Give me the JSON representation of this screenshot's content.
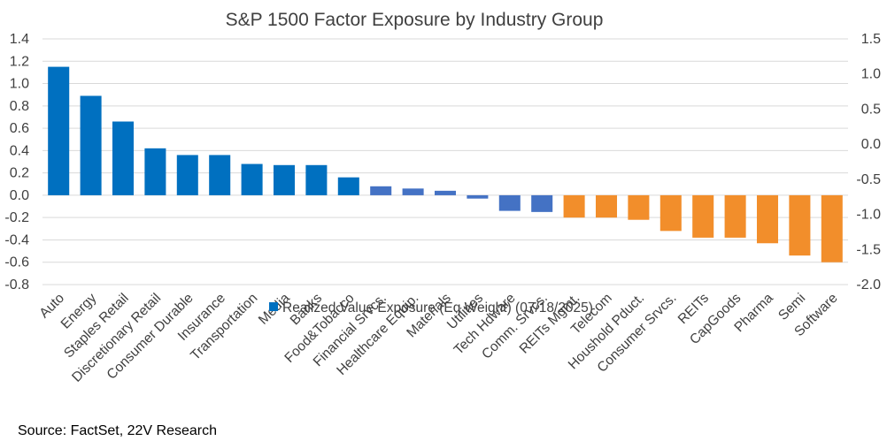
{
  "chart_data": {
    "type": "bar",
    "title": "S&P 1500 Factor Exposure by Industry Group",
    "categories": [
      "Auto",
      "Energy",
      "Staples Retail",
      "Discretionary Retail",
      "Consumer Durable",
      "Insurance",
      "Transportation",
      "Media",
      "Banks",
      "Food&Tobacco",
      "Financial Srvcs.",
      "Healthcare Equip.",
      "Materials",
      "Utilities",
      "Tech Hdware",
      "Comm. Srvcs.",
      "REITs Mgmt.",
      "Telecom",
      "Houshold Pduct.",
      "Consumer Srvcs.",
      "REITs",
      "CapGoods",
      "Pharma",
      "Semi",
      "Software"
    ],
    "series": [
      {
        "name": "Realized Value Exposure (Eq Weight) (07/18/2025)",
        "values": [
          1.15,
          0.89,
          0.66,
          0.42,
          0.36,
          0.36,
          0.28,
          0.27,
          0.27,
          0.16,
          0.08,
          0.06,
          0.04,
          -0.03,
          -0.14,
          -0.15,
          -0.2,
          -0.2,
          -0.22,
          -0.32,
          -0.38,
          -0.38,
          -0.43,
          -0.54,
          -0.6
        ]
      }
    ],
    "bar_colors": [
      "#0070C0",
      "#0070C0",
      "#0070C0",
      "#0070C0",
      "#0070C0",
      "#0070C0",
      "#0070C0",
      "#0070C0",
      "#0070C0",
      "#0070C0",
      "#4472C4",
      "#4472C4",
      "#4472C4",
      "#4472C4",
      "#4472C4",
      "#4472C4",
      "#F28E2B",
      "#F28E2B",
      "#F28E2B",
      "#F28E2B",
      "#F28E2B",
      "#F28E2B",
      "#F28E2B",
      "#F28E2B",
      "#F28E2B"
    ],
    "ylim": [
      -0.8,
      1.4
    ],
    "yticks": [
      "1.4",
      "1.2",
      "1.0",
      "0.8",
      "0.6",
      "0.4",
      "0.2",
      "0.0",
      "-0.2",
      "-0.4",
      "-0.6",
      "-0.8"
    ],
    "y2lim": [
      -2.0,
      1.5
    ],
    "y2ticks": [
      "1.5",
      "1.0",
      "0.5",
      "0.0",
      "-0.5",
      "-1.0",
      "-1.5",
      "-2.0"
    ],
    "grid": true,
    "legend": {
      "position": "bottom",
      "label": "Realized Value Exposure (Eq Weight) (07/18/2025)",
      "color": "#0070C0"
    },
    "source": "Source: FactSet, 22V Research"
  }
}
